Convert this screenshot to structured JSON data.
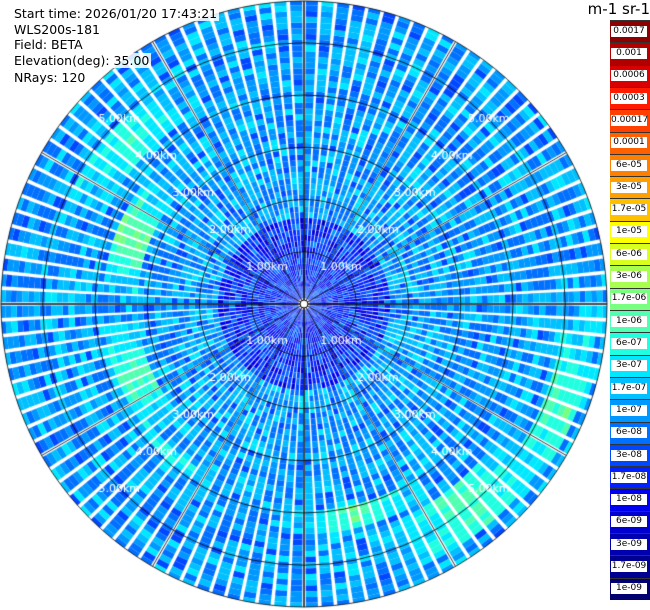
{
  "info": {
    "start_time": "Start time: 2026/01/20 17:43:21",
    "instrument": "WLS200s-181",
    "field": "Field: BETA",
    "elevation": "Elevation(deg): 35.00",
    "nrays": "NRays: 120"
  },
  "colorbar": {
    "title": "m-1 sr-1",
    "labels": [
      "0.0017",
      "0.001",
      "0.0006",
      "0.0003",
      "0.00017",
      "0.0001",
      "6e-05",
      "3e-05",
      "1.7e-05",
      "1e-05",
      "6e-06",
      "3e-06",
      "1.7e-06",
      "1e-06",
      "6e-07",
      "3e-07",
      "1.7e-07",
      "1e-07",
      "6e-08",
      "3e-08",
      "1.7e-08",
      "1e-08",
      "6e-09",
      "3e-09",
      "1.7e-09",
      "1e-09"
    ],
    "colors": [
      "#8b0000",
      "#b00000",
      "#d80000",
      "#ff1a00",
      "#ff4000",
      "#ff6000",
      "#ff8000",
      "#ffa000",
      "#ffc000",
      "#ffff00",
      "#d8ff20",
      "#a8ff50",
      "#78ff80",
      "#50ffb0",
      "#20ffe0",
      "#00e8ff",
      "#00c0ff",
      "#0098ff",
      "#0070ff",
      "#0048ff",
      "#0020ff",
      "#0000f0",
      "#0000d0",
      "#0000b0",
      "#000090",
      "#000070"
    ]
  },
  "chart_data": {
    "type": "heatmap",
    "projection": "polar PPI scan",
    "field": "BETA",
    "units": "m-1 sr-1",
    "scale": "log",
    "range_rings_km": [
      1.0,
      2.0,
      3.0,
      4.0,
      5.0
    ],
    "ring_labels": [
      "1.00km",
      "2.00km",
      "3.00km",
      "4.00km",
      "5.00km"
    ],
    "max_range_km": 5.8,
    "n_rays": 120,
    "typical_value": 1e-07,
    "enhanced_regions": [
      {
        "azimuth_deg": 290,
        "range_km": [
          3.2,
          3.8
        ],
        "value": 1.7e-06
      },
      {
        "azimuth_deg": 245,
        "range_km": [
          3.2,
          3.8
        ],
        "value": 1e-06
      },
      {
        "azimuth_deg": 220,
        "range_km": [
          3.7,
          4.0
        ],
        "value": 6e-07
      },
      {
        "azimuth_deg": 310,
        "range_km": [
          4.2,
          5.0
        ],
        "value": 6e-07
      },
      {
        "azimuth_deg": 110,
        "range_km": [
          5.0,
          5.6
        ],
        "value": 1e-06
      },
      {
        "azimuth_deg": 140,
        "range_km": [
          4.5,
          5.5
        ],
        "value": 1e-06
      },
      {
        "azimuth_deg": 165,
        "range_km": [
          4.0,
          4.4
        ],
        "value": 1e-06
      }
    ]
  }
}
